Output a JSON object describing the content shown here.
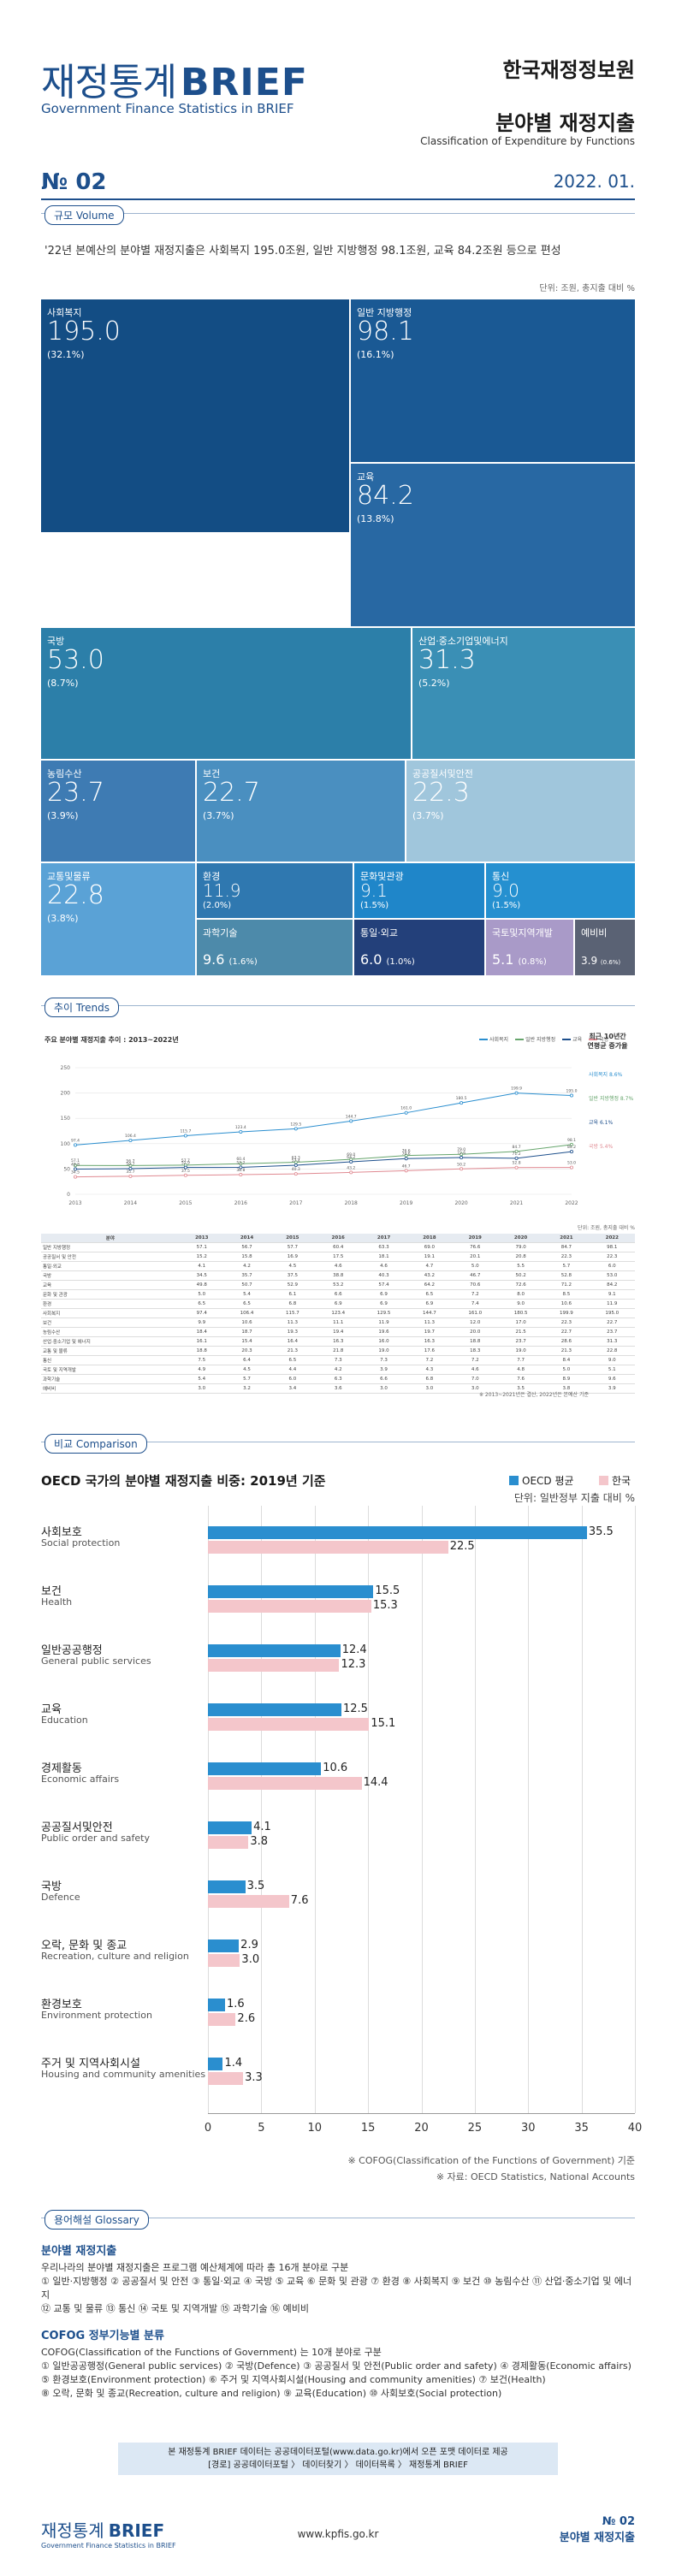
{
  "header": {
    "title_ko": "재정통계",
    "title_en": "BRIEF",
    "subtitle": "Government Finance Statistics in BRIEF",
    "org": "한국재정정보원",
    "topic_ko": "분야별 재정지출",
    "topic_en": "Classification of Expenditure by Functions",
    "issue": "№ 02",
    "date": "2022. 01."
  },
  "volume": {
    "pill": "규모 Volume",
    "summary": "'22년 본예산의 분야별 재정지출은 사회복지 195.0조원, 일반 지방행정 98.1조원, 교육 84.2조원 등으로 편성",
    "unit": "단위: 조원, 총지출 대비 %",
    "tiles": [
      {
        "label": "사회복지",
        "value": "195.0",
        "pct": "(32.1%)",
        "color": "#134d84"
      },
      {
        "label": "일반 지방행정",
        "value": "98.1",
        "pct": "(16.1%)",
        "color": "#1a5994"
      },
      {
        "label": "교육",
        "value": "84.2",
        "pct": "(13.8%)",
        "color": "#2868a3"
      },
      {
        "label": "국방",
        "value": "53.0",
        "pct": "(8.7%)",
        "color": "#2c7fa9"
      },
      {
        "label": "산업·중소기업및에너지",
        "value": "31.3",
        "pct": "(5.2%)",
        "color": "#3a8fb5"
      },
      {
        "label": "농림수산",
        "value": "23.7",
        "pct": "(3.9%)",
        "color": "#3e7bb3"
      },
      {
        "label": "보건",
        "value": "22.7",
        "pct": "(3.7%)",
        "color": "#4a8fc0"
      },
      {
        "label": "공공질서및안전",
        "value": "22.3",
        "pct": "(3.7%)",
        "color": "#a0c6dc"
      },
      {
        "label": "교통및물류",
        "value": "22.8",
        "pct": "(3.8%)",
        "color": "#5aa2d6"
      },
      {
        "label": "환경",
        "value": "11.9",
        "pct": "(2.0%)",
        "color": "#2f78b0"
      },
      {
        "label": "문화및관광",
        "value": "9.1",
        "pct": "(1.5%)",
        "color": "#1f86c9"
      },
      {
        "label": "통신",
        "value": "9.0",
        "pct": "(1.5%)",
        "color": "#2590d0"
      },
      {
        "label": "과학기술",
        "value": "9.6",
        "pct": "(1.6%)",
        "color": "#4d8aaa"
      },
      {
        "label": "통일·외교",
        "value": "6.0",
        "pct": "(1.0%)",
        "color": "#23407a"
      },
      {
        "label": "국토및지역개발",
        "value": "5.1",
        "pct": "(0.8%)",
        "color": "#a99ac8"
      },
      {
        "label": "예비비",
        "value": "3.9",
        "pct": "(0.6%)",
        "color": "#5a6274"
      }
    ]
  },
  "trends": {
    "pill": "추이 Trends",
    "chart_title": "주요 분야별 재정지출 추이 : 2013~2022년",
    "legend": [
      "사회복지",
      "일반 지방행정",
      "교육",
      "국방"
    ],
    "cagr_title": "최근 10년간",
    "cagr_sub": "연평균 증가율",
    "cagr_values": [
      "사회복지 8.6%",
      "일반 지방행정 8.7%",
      "교육 6.1%",
      "국방 5.4%"
    ],
    "unit": "단위: 조원, 총지출 대비 %",
    "table_head": [
      "분야",
      "2013",
      "2014",
      "2015",
      "2016",
      "2017",
      "2018",
      "2019",
      "2020",
      "2021",
      "2022"
    ],
    "table_rows": [
      [
        "일반 지방행정",
        "57.1",
        "56.7",
        "57.7",
        "60.4",
        "63.3",
        "69.0",
        "76.6",
        "79.0",
        "84.7",
        "98.1"
      ],
      [
        "공공질서 및 안전",
        "15.2",
        "15.8",
        "16.9",
        "17.5",
        "18.1",
        "19.1",
        "20.1",
        "20.8",
        "22.3",
        "22.3"
      ],
      [
        "통일·외교",
        "4.1",
        "4.2",
        "4.5",
        "4.6",
        "4.6",
        "4.7",
        "5.0",
        "5.5",
        "5.7",
        "6.0"
      ],
      [
        "국방",
        "34.5",
        "35.7",
        "37.5",
        "38.8",
        "40.3",
        "43.2",
        "46.7",
        "50.2",
        "52.8",
        "53.0"
      ],
      [
        "교육",
        "49.8",
        "50.7",
        "52.9",
        "53.2",
        "57.4",
        "64.2",
        "70.6",
        "72.6",
        "71.2",
        "84.2"
      ],
      [
        "문화 및 관광",
        "5.0",
        "5.4",
        "6.1",
        "6.6",
        "6.9",
        "6.5",
        "7.2",
        "8.0",
        "8.5",
        "9.1"
      ],
      [
        "환경",
        "6.5",
        "6.5",
        "6.8",
        "6.9",
        "6.9",
        "6.9",
        "7.4",
        "9.0",
        "10.6",
        "11.9"
      ],
      [
        "사회복지",
        "97.4",
        "106.4",
        "115.7",
        "123.4",
        "129.5",
        "144.7",
        "161.0",
        "180.5",
        "199.9",
        "195.0"
      ],
      [
        "보건",
        "9.9",
        "10.6",
        "11.3",
        "11.1",
        "11.9",
        "11.3",
        "12.0",
        "17.0",
        "22.3",
        "22.7"
      ],
      [
        "농림수산",
        "18.4",
        "18.7",
        "19.3",
        "19.4",
        "19.6",
        "19.7",
        "20.0",
        "21.5",
        "22.7",
        "23.7"
      ],
      [
        "산업·중소기업 및 에너지",
        "16.1",
        "15.4",
        "16.4",
        "16.3",
        "16.0",
        "16.3",
        "18.8",
        "23.7",
        "28.6",
        "31.3"
      ],
      [
        "교통 및 물류",
        "18.8",
        "20.3",
        "21.3",
        "21.8",
        "19.0",
        "17.6",
        "18.3",
        "19.0",
        "21.3",
        "22.8"
      ],
      [
        "통신",
        "7.5",
        "6.4",
        "6.5",
        "7.3",
        "7.3",
        "7.2",
        "7.2",
        "7.7",
        "8.4",
        "9.0"
      ],
      [
        "국토 및 지역개발",
        "4.9",
        "4.5",
        "4.4",
        "4.2",
        "3.9",
        "4.3",
        "4.6",
        "4.8",
        "5.0",
        "5.1"
      ],
      [
        "과학기술",
        "5.4",
        "5.7",
        "6.0",
        "6.3",
        "6.6",
        "6.8",
        "7.0",
        "7.6",
        "8.9",
        "9.6"
      ],
      [
        "예비비",
        "3.0",
        "3.2",
        "3.4",
        "3.6",
        "3.0",
        "3.0",
        "3.0",
        "3.5",
        "3.8",
        "3.9"
      ]
    ],
    "footnote": "※ 2013~2021년은 결산, 2022년은 본예산 기준"
  },
  "comparison": {
    "pill": "비교 Comparison",
    "title": "OECD 국가의 분야별 재정지출 비중: 2019년 기준",
    "legend_oecd": "OECD 평균",
    "legend_kor": "한국",
    "unit": "단위: 일반정부 지출 대비 %",
    "ticks": [
      "0",
      "5",
      "10",
      "15",
      "20",
      "25",
      "30",
      "35",
      "40"
    ],
    "note1": "※ COFOG(Classification of the Functions of Government) 기준",
    "note2": "※ 자료: OECD Statistics, National Accounts"
  },
  "chart_data": [
    {
      "type": "line",
      "title": "주요 분야별 재정지출 추이 : 2013~2022년",
      "x": [
        "2013",
        "2014",
        "2015",
        "2016",
        "2017",
        "2018",
        "2019",
        "2020",
        "2021",
        "2022"
      ],
      "ylim": [
        0,
        250
      ],
      "yticks": [
        0,
        50,
        100,
        150,
        200,
        250
      ],
      "series": [
        {
          "name": "사회복지",
          "color": "#2a8ecf",
          "values": [
            97.4,
            106.4,
            115.7,
            123.4,
            129.5,
            144.7,
            161.0,
            180.5,
            199.9,
            195.0
          ]
        },
        {
          "name": "일반 지방행정",
          "color": "#66a56c",
          "values": [
            57.1,
            56.7,
            57.7,
            60.4,
            63.3,
            69.0,
            76.6,
            79.0,
            84.7,
            98.1
          ]
        },
        {
          "name": "교육",
          "color": "#1d4f8c",
          "values": [
            49.8,
            50.7,
            52.9,
            53.2,
            57.4,
            64.2,
            70.6,
            72.6,
            71.2,
            84.2
          ]
        },
        {
          "name": "국방",
          "color": "#e08a92",
          "values": [
            34.5,
            35.7,
            37.5,
            38.8,
            40.3,
            43.2,
            46.7,
            50.2,
            52.8,
            53.0
          ]
        }
      ]
    },
    {
      "type": "bar",
      "title": "OECD 국가의 분야별 재정지출 비중: 2019년 기준",
      "xlim": [
        0,
        40
      ],
      "categories": [
        {
          "ko": "사회보호",
          "en": "Social protection"
        },
        {
          "ko": "보건",
          "en": "Health"
        },
        {
          "ko": "일반공공행정",
          "en": "General public services"
        },
        {
          "ko": "교육",
          "en": "Education"
        },
        {
          "ko": "경제활동",
          "en": "Economic affairs"
        },
        {
          "ko": "공공질서및안전",
          "en": "Public order and safety"
        },
        {
          "ko": "국방",
          "en": "Defence"
        },
        {
          "ko": "오락, 문화 및 종교",
          "en": "Recreation, culture and religion"
        },
        {
          "ko": "환경보호",
          "en": "Environment protection"
        },
        {
          "ko": "주거 및 지역사회시설",
          "en": "Housing and community amenities"
        }
      ],
      "series": [
        {
          "name": "OECD 평균",
          "color": "#2a8ecf",
          "values": [
            35.5,
            15.5,
            12.4,
            12.5,
            10.6,
            4.1,
            3.5,
            2.9,
            1.6,
            1.4
          ]
        },
        {
          "name": "한국",
          "color": "#f4c6cb",
          "values": [
            22.5,
            15.3,
            12.3,
            15.1,
            14.4,
            3.8,
            7.6,
            3.0,
            2.6,
            3.3
          ]
        }
      ]
    }
  ],
  "glossary": {
    "pill": "용어해설 Glossary",
    "h1": "분야별 재정지출",
    "t1a": "우리나라의 분야별 재정지출은 프로그램 예산체계에 따라 총 16개 분야로 구분",
    "t1b": "① 일반·지방행정 ② 공공질서 및 안전 ③ 통일·외교 ④ 국방 ⑤ 교육 ⑥ 문화 및 관광 ⑦ 환경 ⑧ 사회복지 ⑨ 보건 ⑩ 농림수산 ⑪ 산업·중소기업 및 에너지",
    "t1c": "⑫ 교통 및 물류 ⑬ 통신 ⑭ 국토 및 지역개발 ⑮ 과학기술 ⑯ 예비비",
    "h2": "COFOG 정부기능별 분류",
    "t2a": "COFOG(Classification of the Functions of Government) 는 10개 분야로 구분",
    "t2b": "① 일반공공행정(General public services) ② 국방(Defence) ③ 공공질서 및 안전(Public order and safety) ④ 경제활동(Economic affairs)",
    "t2c": "⑤ 환경보호(Environment protection) ⑥ 주거 및 지역사회시설(Housing and community amenities) ⑦ 보건(Health)",
    "t2d": "⑧ 오락, 문화 및 종교(Recreation, culture and religion) ⑨ 교육(Education) ⑩ 사회보호(Social protection)"
  },
  "footer": {
    "box1": "본 재정통계 BRIEF 데이터는 공공데이터포털(www.data.go.kr)에서 오픈 포맷 데이터로 제공",
    "box2": "[경로] 공공데이터포털 〉 데이터찾기 〉 데이터목록 〉 재정통계 BRIEF",
    "brand_ko": "재정통계",
    "brand_en": "BRIEF",
    "brand_sub": "Government Finance Statistics in BRIEF",
    "url": "www.kpfis.go.kr",
    "issue": "№ 02",
    "topic": "분야별 재정지출"
  }
}
